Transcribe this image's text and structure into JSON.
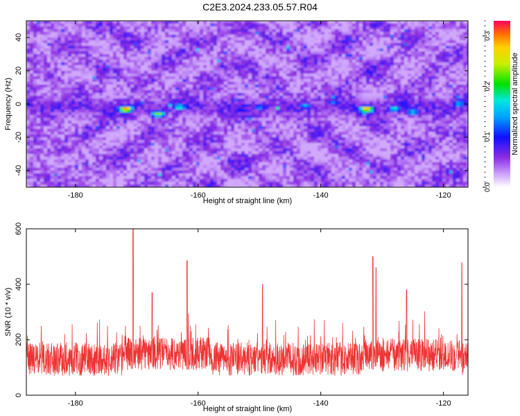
{
  "title": "C2E3.2024.233.05.57.R04",
  "chart_data": [
    {
      "type": "heatmap",
      "xlabel": "Height of straight line (km)",
      "ylabel": "Frequency (Hz)",
      "xlim": [
        -188,
        -116
      ],
      "ylim": [
        -50,
        50
      ],
      "xticks": [
        -180,
        -160,
        -140,
        -120
      ],
      "yticks": [
        -40,
        -20,
        0,
        20,
        40
      ],
      "colorbar": {
        "label": "Normalized spectral amplitude",
        "range": [
          0,
          0.33
        ],
        "ticks": [
          0.0,
          0.1,
          0.2,
          0.3
        ],
        "tick_labels": [
          "0.0",
          "0.1",
          "0.2",
          "0.3"
        ]
      },
      "background_level": 0.06,
      "hotspots": [
        {
          "x": -171.8,
          "y": -3,
          "value": 0.31
        },
        {
          "x": -166.5,
          "y": -6,
          "value": 0.24
        },
        {
          "x": -163.0,
          "y": -2,
          "value": 0.19
        },
        {
          "x": -150.0,
          "y": -2,
          "value": 0.14
        },
        {
          "x": -142.5,
          "y": -1,
          "value": 0.15
        },
        {
          "x": -138.0,
          "y": 1,
          "value": 0.13
        },
        {
          "x": -132.5,
          "y": -3,
          "value": 0.3
        },
        {
          "x": -128.0,
          "y": -3,
          "value": 0.18
        },
        {
          "x": -125.0,
          "y": -5,
          "value": 0.17
        },
        {
          "x": -117.5,
          "y": 0,
          "value": 0.16
        }
      ]
    },
    {
      "type": "line",
      "xlabel": "Height of straight line (km)",
      "ylabel": "SNR (10 * v/v)",
      "xlim": [
        -188,
        -116
      ],
      "ylim": [
        0,
        600
      ],
      "xticks": [
        -180,
        -160,
        -140,
        -120
      ],
      "yticks": [
        0,
        200,
        400,
        600
      ],
      "color": "#ee3333",
      "baseline": 130,
      "noise_amplitude": 60,
      "peaks": [
        {
          "x": -170.6,
          "y": 598
        },
        {
          "x": -161.8,
          "y": 485
        },
        {
          "x": -167.5,
          "y": 370
        },
        {
          "x": -149.5,
          "y": 400
        },
        {
          "x": -131.5,
          "y": 500
        },
        {
          "x": -131.0,
          "y": 460
        },
        {
          "x": -126.0,
          "y": 380
        },
        {
          "x": -117.0,
          "y": 478
        }
      ]
    }
  ],
  "colors": {
    "background": "#ffffff",
    "axis": "#000000",
    "line": "#ee3333"
  }
}
